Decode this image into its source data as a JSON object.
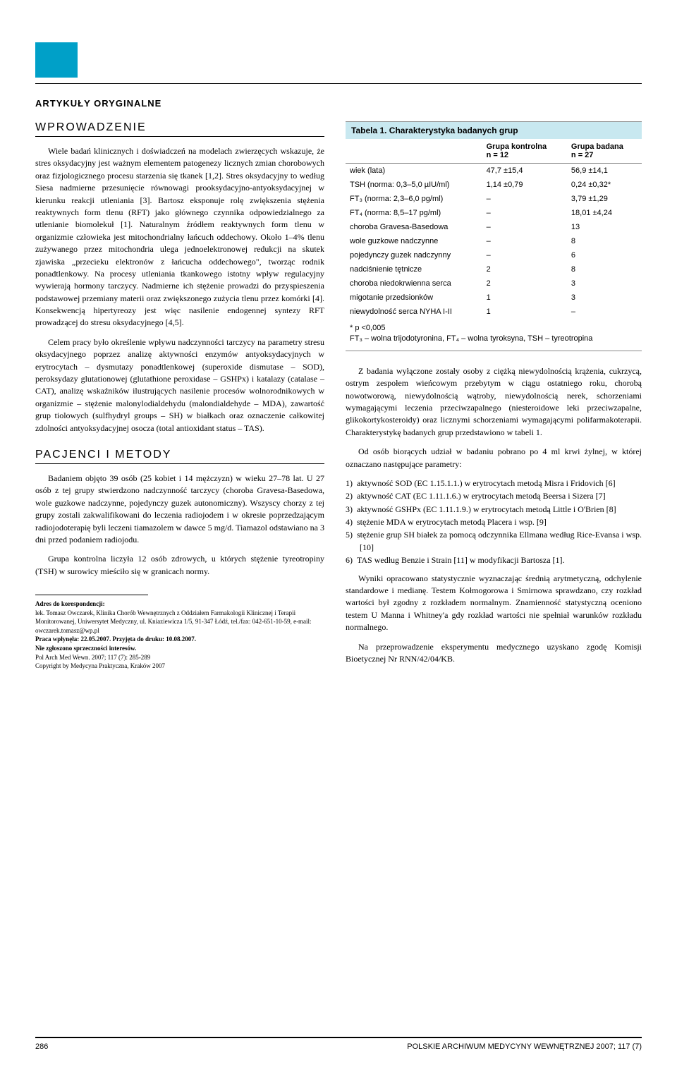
{
  "header": {
    "section_label": "ARTYKUŁY ORYGINALNE"
  },
  "headings": {
    "intro": "WPROWADZENIE",
    "methods": "PACJENCI I METODY"
  },
  "intro": {
    "p1": "Wiele badań klinicznych i doświadczeń na modelach zwierzęcych wskazuje, że stres oksydacyjny jest ważnym elementem patogenezy licznych zmian chorobowych oraz fizjologicznego procesu starzenia się tkanek [1,2]. Stres oksydacyjny to według Siesa nadmierne przesunięcie równowagi prooksydacyjno-antyoksydacyjnej w kierunku reakcji utleniania [3]. Bartosz eksponuje rolę zwiększenia stężenia reaktywnych form tlenu (RFT) jako głównego czynnika odpowiedzialnego za utlenianie biomolekuł [1]. Naturalnym źródłem reaktywnych form tlenu w organizmie człowieka jest mitochondrialny łańcuch oddechowy. Około 1–4% tlenu zużywanego przez mitochondria ulega jednoelektronowej redukcji na skutek zjawiska „przecieku elektronów z łańcucha oddechowego\", tworząc rodnik ponadtlenkowy. Na procesy utleniania tkankowego istotny wpływ regulacyjny wywierają hormony tarczycy. Nadmierne ich stężenie prowadzi do przyspieszenia podstawowej przemiany materii oraz zwiększonego zużycia tlenu przez komórki [4]. Konsekwencją hipertyreozy jest więc nasilenie endogennej syntezy RFT prowadzącej do stresu oksydacyjnego [4,5].",
    "p2": "Celem pracy było określenie wpływu nadczynności tarczycy na parametry stresu oksydacyjnego poprzez analizę aktywności enzymów antyoksydacyjnych w erytrocytach – dysmutazy ponadtlenkowej (superoxide dismutase – SOD), peroksydazy glutationowej (glutathione peroxidase – GSHPx) i katalazy (catalase – CAT), analizę wskaźników ilustrujących nasilenie procesów wolnorodnikowych w organizmie – stężenie malonylodialdehydu (malondialdehyde – MDA), zawartość grup tiolowych (sulfhydryl groups – SH) w białkach oraz oznaczenie całkowitej zdolności antyoksydacyjnej osocza (total antioxidant status – TAS)."
  },
  "methods": {
    "p1": "Badaniem objęto 39 osób (25 kobiet i 14 mężczyzn) w wieku 27–78 lat. U 27 osób z tej grupy stwierdzono nadczynność tarczycy (choroba Gravesa-Basedowa, wole guzkowe nadczynne, pojedynczy guzek autonomiczny). Wszyscy chorzy z tej grupy zostali zakwalifikowani do leczenia radiojodem i w okresie poprzedzającym radiojodoterapię byli leczeni tiamazolem w dawce 5 mg/d. Tiamazol odstawiano na 3 dni przed podaniem radiojodu.",
    "p2": "Grupa kontrolna liczyła 12 osób zdrowych, u których stężenie tyreotropiny (TSH) w surowicy mieściło się w granicach normy."
  },
  "table": {
    "title": "Tabela 1. Charakterystyka badanych grup",
    "col_control": "Grupa kontrolna",
    "col_control_n": "n = 12",
    "col_study": "Grupa badana",
    "col_study_n": "n = 27",
    "rows": [
      {
        "label": "wiek (lata)",
        "c1": "47,7 ±15,4",
        "c2": "56,9 ±14,1"
      },
      {
        "label": "TSH (norma: 0,3–5,0 µIU/ml)",
        "c1": "1,14 ±0,79",
        "c2": "0,24 ±0,32*"
      },
      {
        "label": "FT₃ (norma: 2,3–6,0 pg/ml)",
        "c1": "–",
        "c2": "3,79 ±1,29"
      },
      {
        "label": "FT₄ (norma: 8,5–17 pg/ml)",
        "c1": "–",
        "c2": "18,01 ±4,24"
      },
      {
        "label": "choroba Gravesa-Basedowa",
        "c1": "–",
        "c2": "13"
      },
      {
        "label": "wole guzkowe nadczynne",
        "c1": "–",
        "c2": "8"
      },
      {
        "label": "pojedynczy guzek nadczynny",
        "c1": "–",
        "c2": "6"
      },
      {
        "label": "nadciśnienie tętnicze",
        "c1": "2",
        "c2": "8"
      },
      {
        "label": "choroba niedokrwienna serca",
        "c1": "2",
        "c2": "3"
      },
      {
        "label": "migotanie przedsionków",
        "c1": "1",
        "c2": "3"
      },
      {
        "label": "niewydolność serca NYHA I-II",
        "c1": "1",
        "c2": "–"
      }
    ],
    "footnote_p": "* p <0,005",
    "footnote_legend": "FT₃ – wolna trijodotyronina, FT₄ – wolna tyroksyna, TSH – tyreotropina"
  },
  "right_text": {
    "p1": "Z badania wyłączone zostały osoby z ciężką niewydolnością krążenia, cukrzycą, ostrym zespołem wieńcowym przebytym w ciągu ostatniego roku, chorobą nowotworową, niewydolnością wątroby, niewydolnością nerek, schorzeniami wymagającymi leczenia przeciwzapalnego (niesteroidowe leki przeciwzapalne, glikokortykosteroidy) oraz licznymi schorzeniami wymagającymi polifarmakoterapii. Charakterystykę badanych grup przedstawiono w tabeli 1.",
    "p2": "Od osób biorących udział w badaniu pobrano po 4 ml krwi żylnej, w której oznaczano następujące parametry:",
    "items": [
      "1)  aktywność SOD (EC 1.15.1.1.) w erytrocytach metodą Misra i Fridovich [6]",
      "2)  aktywność CAT (EC 1.11.1.6.) w erytrocytach metodą Beersa i Sizera [7]",
      "3)  aktywność GSHPx (EC 1.11.1.9.) w erytrocytach metodą Little i O'Brien [8]",
      "4)  stężenie MDA w erytrocytach metodą Placera i wsp. [9]",
      "5)  stężenie grup SH białek za pomocą odczynnika Ellmana według Rice-Evansa i wsp. [10]",
      "6)  TAS według Benzie i Strain [11] w modyfikacji Bartosza [1]."
    ],
    "p3": "Wyniki opracowano statystycznie wyznaczając średnią arytmetyczną, odchylenie standardowe i medianę. Testem Kołmogorowa i Smirnowa sprawdzano, czy rozkład wartości był zgodny z rozkładem normalnym. Znamienność statystyczną oceniono testem U Manna i Whitney'a gdy rozkład wartości nie spełniał warunków rozkładu normalnego.",
    "p4": "Na przeprowadzenie eksperymentu medycznego uzyskano zgodę Komisji Bioetycznej Nr RNN/42/04/KB."
  },
  "address": {
    "heading": "Adres do korespondencji:",
    "line1": "lek. Tomasz Owczarek, Klinika Chorób Wewnętrznych z Oddziałem Farmakologii Klinicznej i Terapii Monitorowanej, Uniwersytet Medyczny, ul. Kniaziewicza 1/5, 91-347 Łódź, tel./fax: 042-651-10-59, e-mail: owczarek.tomasz@wp.pl",
    "line2": "Praca wpłynęła: 22.05.2007. Przyjęta do druku: 10.08.2007.",
    "line3": "Nie zgłoszono sprzeczności interesów.",
    "line4": "Pol Arch Med Wewn. 2007; 117 (7): 285-289",
    "line5": "Copyright by Medycyna Praktyczna, Kraków 2007"
  },
  "footer": {
    "page": "286",
    "journal": "POLSKIE ARCHIWUM MEDYCYNY WEWNĘTRZNEJ  2007; 117 (7)"
  },
  "colors": {
    "accent": "#00a0c8",
    "table_header_bg": "#c8e8f0"
  }
}
